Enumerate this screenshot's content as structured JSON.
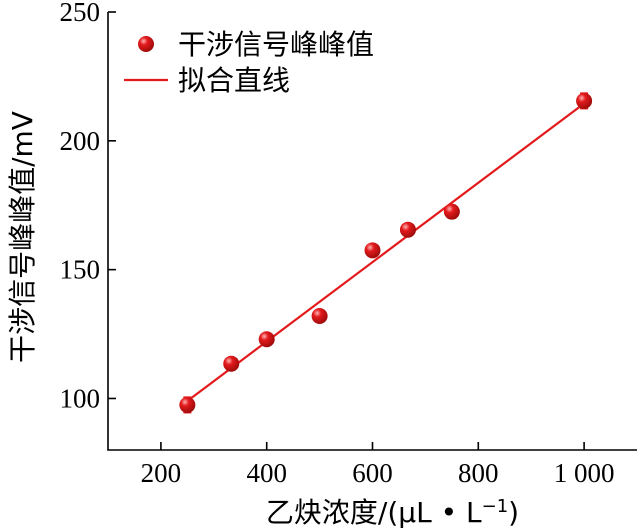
{
  "chart_data": {
    "type": "scatter",
    "xlabel": "乙炔浓度/(μL • L",
    "xlabel_sup": "−1",
    "xlabel_close": ")",
    "ylabel": "干涉信号峰峰值/mV",
    "xlim": [
      100,
      1100
    ],
    "ylim": [
      80,
      250
    ],
    "x_ticks": [
      200,
      400,
      600,
      800,
      1000
    ],
    "x_tick_labels": [
      "200",
      "400",
      "600",
      "800",
      "1 000"
    ],
    "y_ticks": [
      100,
      150,
      200,
      250
    ],
    "y_tick_labels": [
      "100",
      "150",
      "200",
      "250"
    ],
    "grid": false,
    "legend_position": "top-left",
    "series": [
      {
        "name": "干涉信号峰峰值",
        "kind": "points",
        "color": "#e31a1c",
        "points": [
          {
            "x": 250,
            "y": 97.5,
            "err": 3
          },
          {
            "x": 333,
            "y": 113.5,
            "err": 1.5
          },
          {
            "x": 400,
            "y": 123,
            "err": 1.5
          },
          {
            "x": 500,
            "y": 132,
            "err": 1
          },
          {
            "x": 600,
            "y": 157.5,
            "err": 1.5
          },
          {
            "x": 667,
            "y": 165.5,
            "err": 2
          },
          {
            "x": 750,
            "y": 172.5,
            "err": 2.5
          },
          {
            "x": 1000,
            "y": 215.5,
            "err": 3
          }
        ]
      },
      {
        "name": "拟合直线",
        "kind": "line",
        "color": "#e31a1c",
        "line": {
          "x": [
            250,
            1000
          ],
          "y": [
            99,
            214.5
          ]
        }
      }
    ]
  }
}
